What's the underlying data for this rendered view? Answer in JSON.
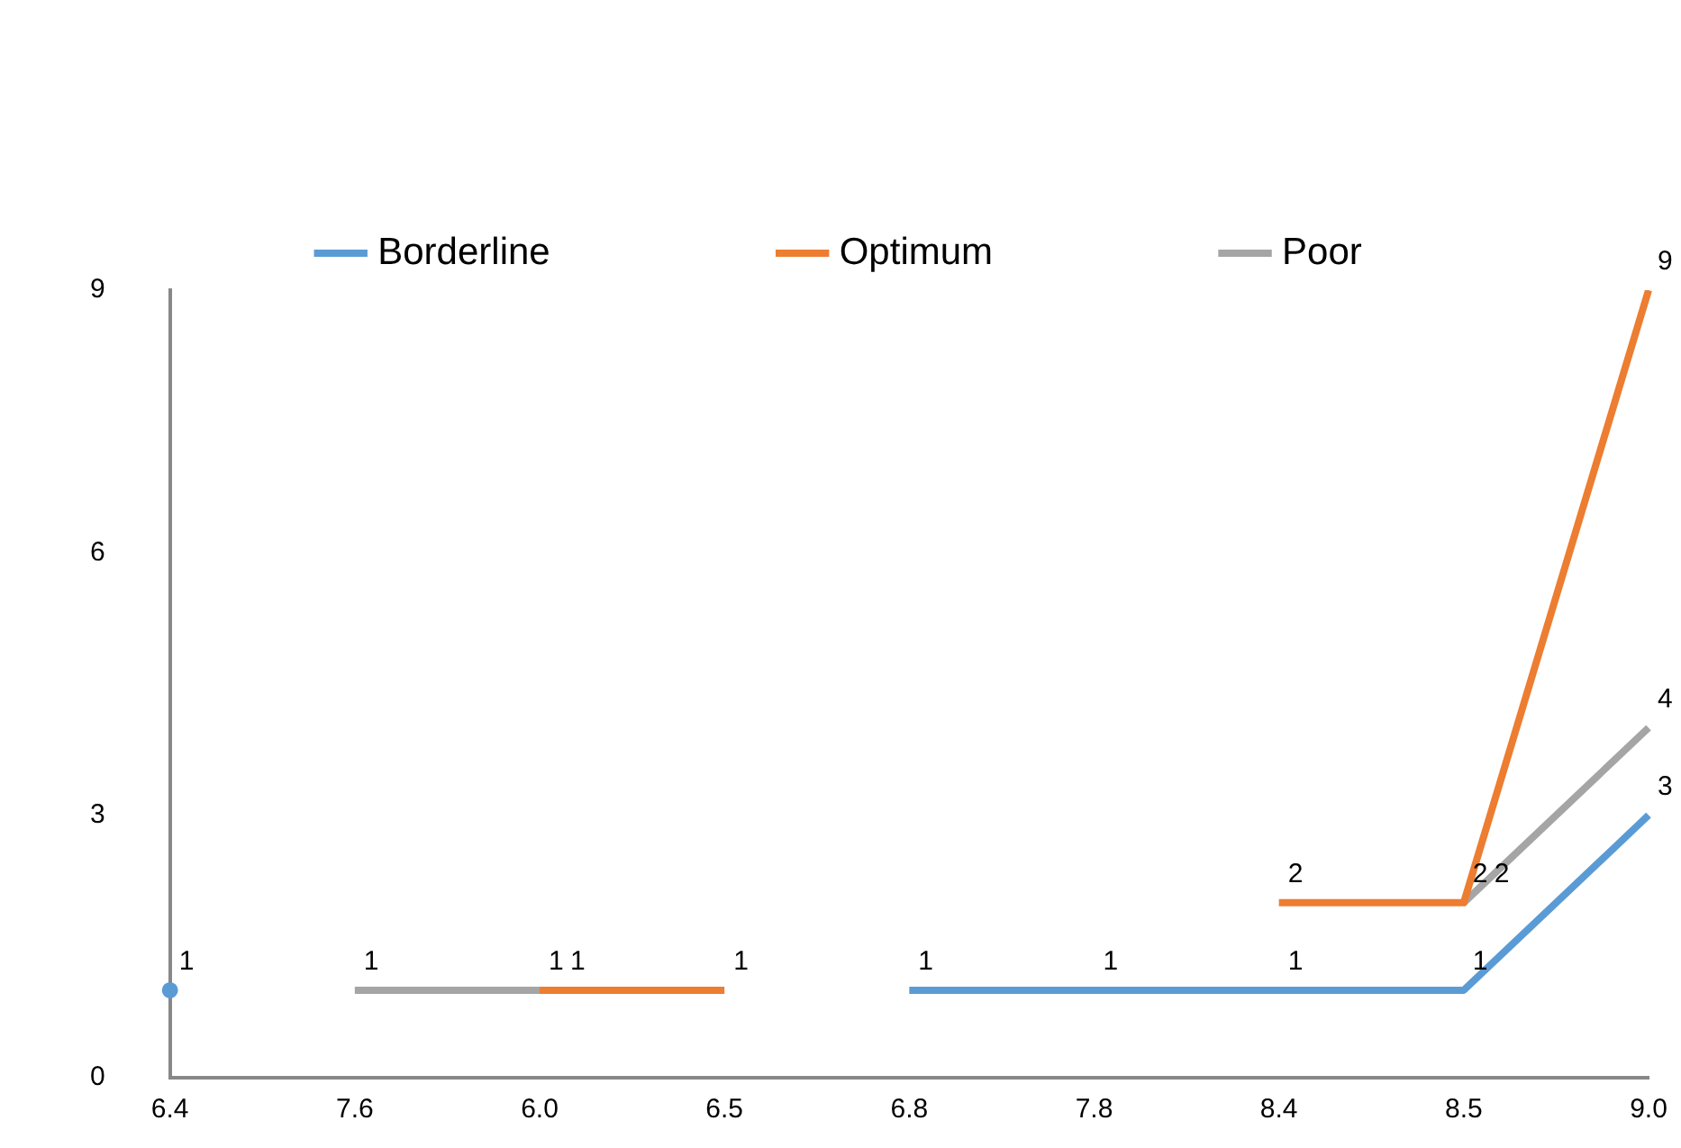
{
  "chart_data": {
    "type": "line",
    "categories": [
      "6.4",
      "7.6",
      "6.0",
      "6.5",
      "6.8",
      "7.8",
      "8.4",
      "8.5",
      "9.0"
    ],
    "series": [
      {
        "name": "Borderline",
        "color": "#5b9bd5",
        "values": [
          1,
          null,
          null,
          null,
          1,
          1,
          1,
          1,
          3
        ]
      },
      {
        "name": "Optimum",
        "color": "#ed7d31",
        "values": [
          null,
          null,
          1,
          1,
          null,
          null,
          2,
          2,
          9
        ]
      },
      {
        "name": "Poor",
        "color": "#a5a5a5",
        "values": [
          null,
          1,
          1,
          null,
          null,
          null,
          null,
          2,
          4
        ]
      }
    ],
    "ylim": [
      0,
      9
    ],
    "yticks": [
      0,
      3,
      6,
      9
    ],
    "grid": false,
    "legend": "top",
    "marker": "none",
    "line_style": "solid",
    "data_labels": true
  }
}
